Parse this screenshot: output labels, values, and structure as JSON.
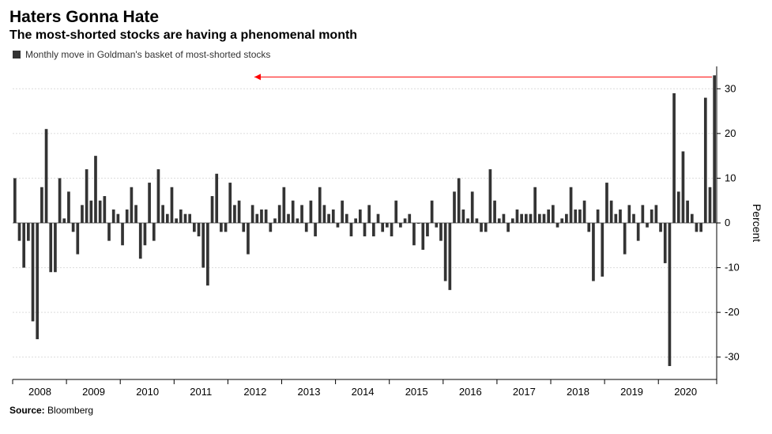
{
  "title": "Haters Gonna Hate",
  "subtitle": "The most-shorted stocks are having a phenomenal month",
  "legend_label": "Monthly move in Goldman's basket of most-shorted stocks",
  "source_label": "Source:",
  "source_value": "Bloomberg",
  "chart": {
    "type": "bar",
    "ylabel": "Percent",
    "ylim": [
      -35,
      35
    ],
    "yticks": [
      -30,
      -20,
      -10,
      0,
      10,
      20,
      30
    ],
    "x_years": [
      2008,
      2009,
      2010,
      2011,
      2012,
      2013,
      2014,
      2015,
      2016,
      2017,
      2018,
      2019,
      2020
    ],
    "bar_color": "#333333",
    "grid_color": "#dcdcdc",
    "axis_color": "#000000",
    "zero_line_color": "#666666",
    "background_color": "#ffffff",
    "arrow_color": "#ff0000",
    "tick_fontsize": 13,
    "ylabel_fontsize": 14,
    "bar_gap_ratio": 0.35,
    "values": [
      10,
      -4,
      -10,
      -4,
      -22,
      -26,
      8,
      21,
      -11,
      -11,
      10,
      1,
      7,
      -2,
      -7,
      4,
      12,
      5,
      15,
      5,
      6,
      -4,
      3,
      2,
      -5,
      3,
      8,
      4,
      -8,
      -5,
      9,
      -4,
      12,
      4,
      2,
      8,
      1,
      3,
      2,
      2,
      -2,
      -3,
      -10,
      -14,
      6,
      11,
      -2,
      -2,
      9,
      4,
      5,
      -2,
      -7,
      4,
      2,
      3,
      3,
      -2,
      1,
      4,
      8,
      2,
      5,
      1,
      4,
      -2,
      5,
      -3,
      8,
      4,
      2,
      3,
      -1,
      5,
      2,
      -3,
      1,
      3,
      -3,
      4,
      -3,
      2,
      -2,
      -1,
      -3,
      5,
      -1,
      1,
      2,
      -5,
      0,
      -6,
      -3,
      5,
      -1,
      -4,
      -13,
      -15,
      7,
      10,
      3,
      1,
      7,
      1,
      -2,
      -2,
      12,
      5,
      1,
      2,
      -2,
      1,
      3,
      2,
      2,
      2,
      8,
      2,
      2,
      3,
      4,
      -1,
      1,
      2,
      8,
      3,
      3,
      5,
      -2,
      -13,
      3,
      -12,
      9,
      5,
      2,
      3,
      -7,
      4,
      2,
      -4,
      4,
      -1,
      3,
      4,
      -2,
      -9,
      -32,
      29,
      7,
      16,
      5,
      2,
      -2,
      -2,
      28,
      8,
      33
    ]
  }
}
